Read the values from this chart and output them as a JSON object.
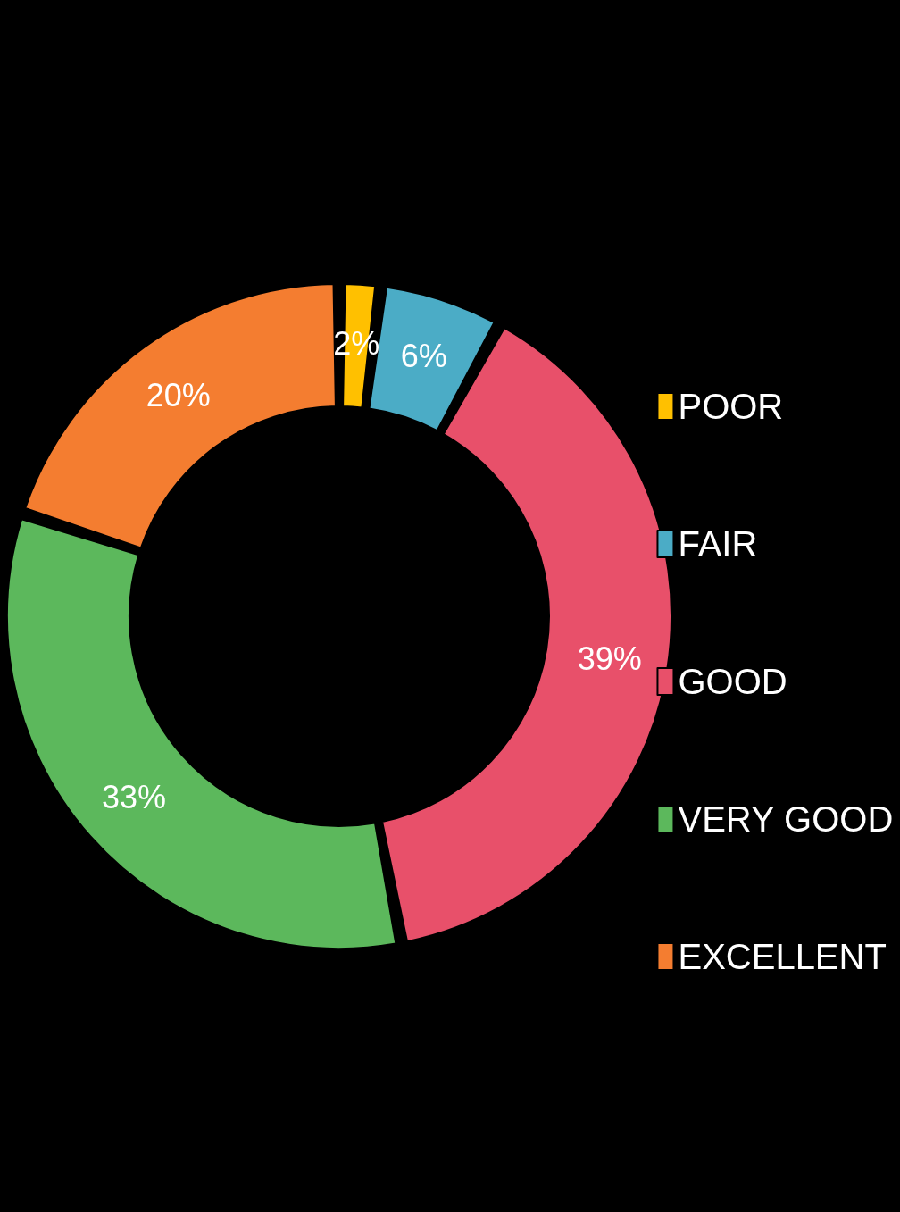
{
  "chart_data": {
    "type": "donut",
    "categories": [
      "POOR",
      "FAIR",
      "GOOD",
      "VERY GOOD",
      "EXCELLENT"
    ],
    "values": [
      2,
      6,
      39,
      33,
      20
    ],
    "colors": [
      "#ffc000",
      "#4bacc6",
      "#e8506a",
      "#5cb85c",
      "#f47d30"
    ],
    "value_labels": [
      "2%",
      "6%",
      "39%",
      "33%",
      "20%"
    ],
    "legend": "right"
  }
}
